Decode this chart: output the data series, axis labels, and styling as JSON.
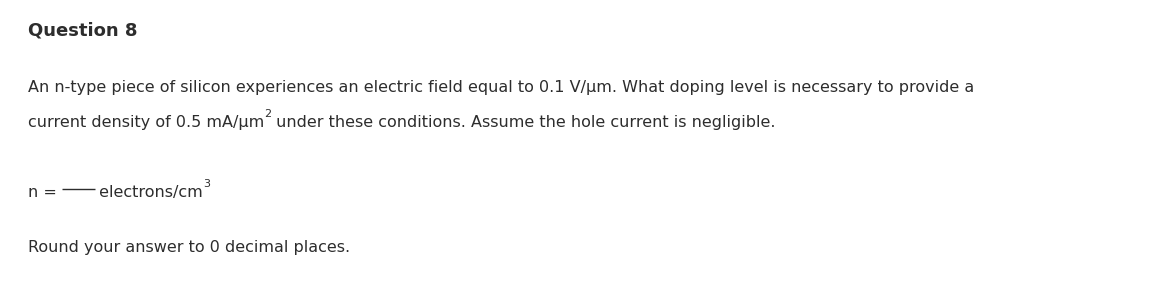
{
  "title": "Question 8",
  "title_fontsize": 13,
  "body_line1": "An n-type piece of silicon experiences an electric field equal to 0.1 V/μm. What doping level is necessary to provide a",
  "body_line2_part1": "current density of 0.5 mA/μm",
  "body_line2_super": "2",
  "body_line2_part2": " under these conditions. Assume the hole current is negligible.",
  "answer_prefix": "n = ",
  "answer_blank": "____",
  "answer_suffix": " electrons/cm",
  "answer_super": "3",
  "round_line": "Round your answer to 0 decimal places.",
  "body_fontsize": 11.5,
  "super_fontsize": 8,
  "background_color": "#ffffff",
  "text_color": "#2d2d2d",
  "fig_width": 11.56,
  "fig_height": 2.86,
  "dpi": 100
}
